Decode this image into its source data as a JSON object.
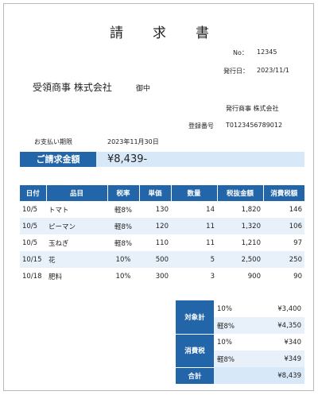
{
  "title": "請　求　書",
  "invoice_no_label": "No：",
  "invoice_no": "12345",
  "issue_date_label": "発行日：",
  "issue_date": "2023/11/1",
  "recipient": "受領商事 株式会社",
  "honorific": "御中",
  "issuer": "発行商事 株式会社",
  "registration_label": "登録番号",
  "registration_no": "T0123456789012",
  "due_label": "お支払い期限",
  "due_date": "2023年11月30日",
  "total_label": "ご請求金額",
  "total_amount": "¥8,439-",
  "items": {
    "headers": [
      "日付",
      "品目",
      "税率",
      "単価",
      "数量",
      "税抜金額",
      "消費税額"
    ],
    "rows": [
      [
        "10/5",
        "トマト",
        "軽8%",
        "130",
        "14",
        "1,820",
        "146"
      ],
      [
        "10/5",
        "ピーマン",
        "軽8%",
        "120",
        "11",
        "1,320",
        "106"
      ],
      [
        "10/5",
        "玉ねぎ",
        "軽8%",
        "110",
        "11",
        "1,210",
        "97"
      ],
      [
        "10/15",
        "花",
        "10%",
        "500",
        "5",
        "2,500",
        "250"
      ],
      [
        "10/18",
        "肥料",
        "10%",
        "300",
        "3",
        "900",
        "90"
      ]
    ]
  },
  "summary": {
    "subtotal_label": "対象計",
    "subtotal_rows": [
      {
        "rate": "10%",
        "amount": "¥3,400"
      },
      {
        "rate": "軽8%",
        "amount": "¥4,350"
      }
    ],
    "tax_label": "消費税",
    "tax_rows": [
      {
        "rate": "10%",
        "amount": "¥340"
      },
      {
        "rate": "軽8%",
        "amount": "¥349"
      }
    ],
    "grand_total_label": "合計",
    "grand_total": "¥8,439"
  },
  "colors": {
    "header_blue": "#2265a8",
    "light_blue": "#d7e8f8",
    "row_stripe": "#e8f1fa"
  }
}
